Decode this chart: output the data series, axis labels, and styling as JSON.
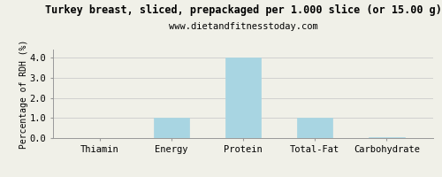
{
  "title": "Turkey breast, sliced, prepackaged per 1.000 slice (or 15.00 g)",
  "subtitle": "www.dietandfitnesstoday.com",
  "categories": [
    "Thiamin",
    "Energy",
    "Protein",
    "Total-Fat",
    "Carbohydrate"
  ],
  "values": [
    0.0,
    1.0,
    4.0,
    1.0,
    0.05
  ],
  "bar_color": "#a8d5e2",
  "bar_edge_color": "#a8d5e2",
  "ylabel": "Percentage of RDH (%)",
  "ylim": [
    0,
    4.4
  ],
  "yticks": [
    0.0,
    1.0,
    2.0,
    3.0,
    4.0
  ],
  "background_color": "#f0f0e8",
  "grid_color": "#cccccc",
  "title_fontsize": 8.5,
  "subtitle_fontsize": 7.5,
  "tick_fontsize": 7.5,
  "ylabel_fontsize": 7,
  "font_family": "monospace"
}
